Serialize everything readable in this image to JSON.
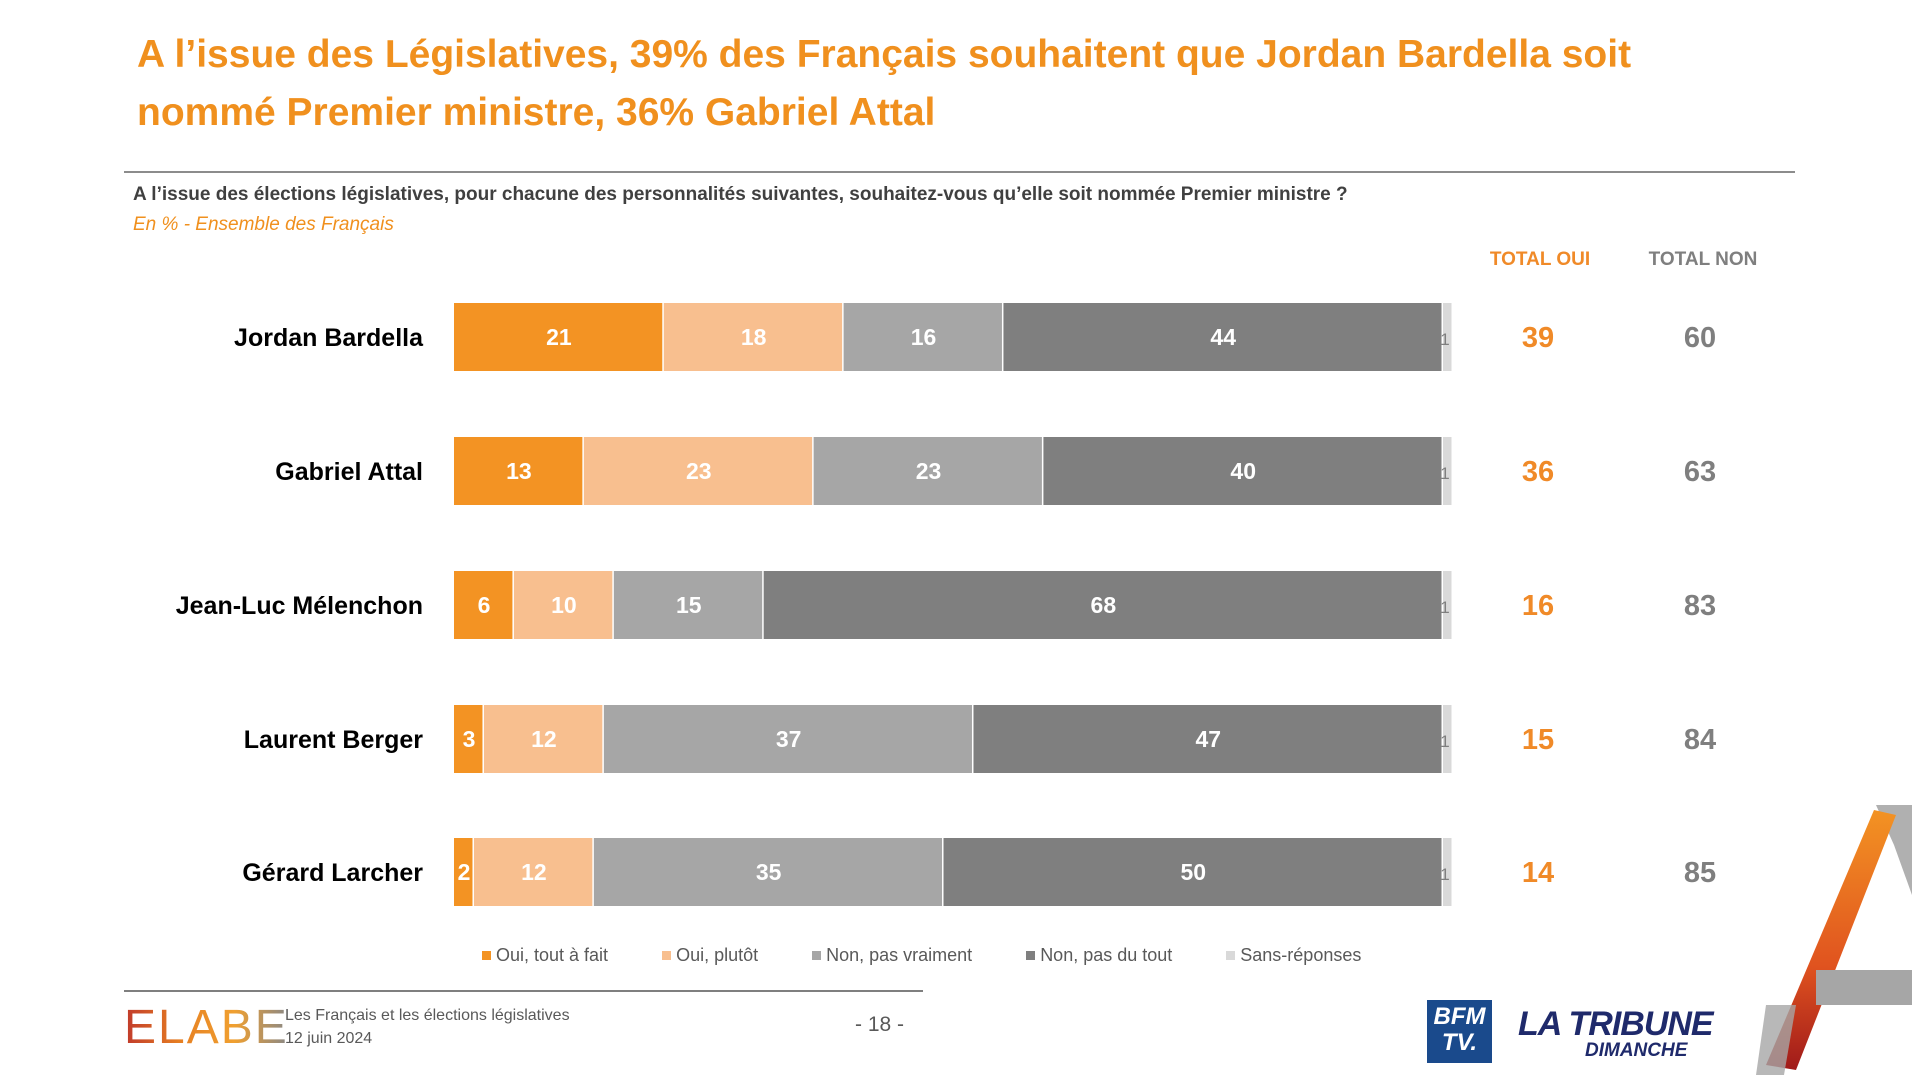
{
  "title_line1": "A l’issue des Législatives, 39% des Français souhaitent que Jordan Bardella soit",
  "title_line2": "nommé Premier ministre, 36% Gabriel Attal",
  "question": "A l’issue des élections législatives, pour chacune des personnalités suivantes, souhaitez-vous qu’elle soit nommée Premier ministre ?",
  "subtitle": "En % - Ensemble des Français",
  "footer": {
    "logo": "ELABE",
    "study": "Les Français et les élections législatives",
    "date": "12 juin 2024",
    "page": "- 18 -",
    "bfm": "BFM TV.",
    "tribune": "LA TRIBUNE",
    "tribune_sub": "DIMANCHE"
  },
  "chart_data": {
    "type": "bar",
    "orientation": "horizontal-stacked-100",
    "categories": [
      "Jordan Bardella",
      "Gabriel Attal",
      "Jean-Luc Mélenchon",
      "Laurent Berger",
      "Gérard Larcher"
    ],
    "series": [
      {
        "name": "Oui, tout à fait",
        "color": "#f39323",
        "values": [
          21,
          13,
          6,
          3,
          2
        ]
      },
      {
        "name": "Oui, plutôt",
        "color": "#f8bf8f",
        "values": [
          18,
          23,
          10,
          12,
          12
        ]
      },
      {
        "name": "Non, pas vraiment",
        "color": "#a6a6a6",
        "values": [
          16,
          23,
          15,
          37,
          35
        ]
      },
      {
        "name": "Non, pas du tout",
        "color": "#7f7f7f",
        "values": [
          44,
          40,
          68,
          47,
          50
        ]
      },
      {
        "name": "Sans-réponses",
        "color": "#d9d9d9",
        "values": [
          1,
          1,
          1,
          1,
          1
        ]
      }
    ],
    "totals": {
      "oui_label": "TOTAL OUI",
      "non_label": "TOTAL NON",
      "oui": [
        39,
        36,
        16,
        15,
        14
      ],
      "non": [
        60,
        63,
        83,
        84,
        85
      ],
      "oui_color": "#f08a28",
      "non_color": "#7f7f7f"
    },
    "legend_position": "bottom",
    "grid": false
  }
}
